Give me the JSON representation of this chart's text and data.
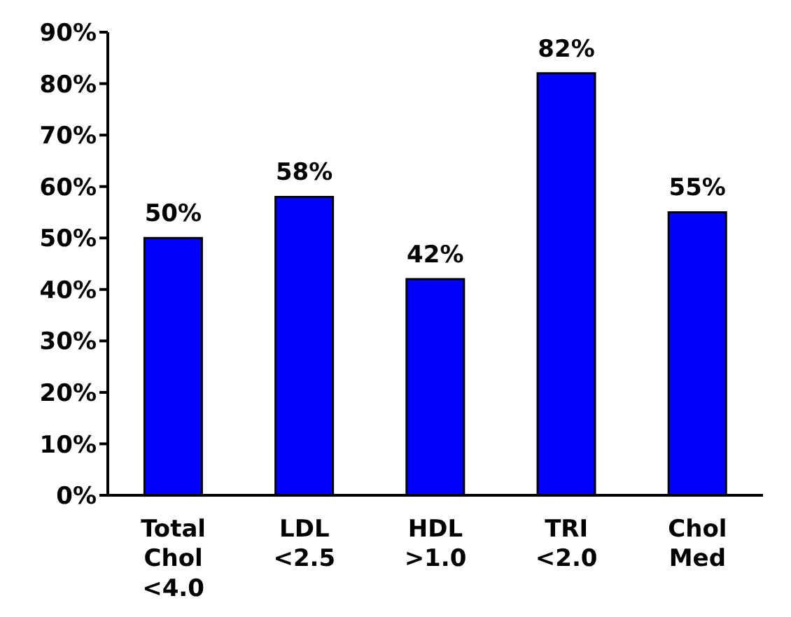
{
  "chart_data": {
    "type": "bar",
    "categories": [
      "Total Chol <4.0",
      "LDL <2.5",
      "HDL >1.0",
      "TRI <2.0",
      "Chol Med"
    ],
    "values": [
      50,
      58,
      42,
      82,
      55
    ],
    "value_labels": [
      "50%",
      "58%",
      "42%",
      "82%",
      "55%"
    ],
    "color": "#0000ff",
    "ylim": [
      0,
      90
    ],
    "yticks": [
      {
        "value": 0,
        "label": "0%"
      },
      {
        "value": 10,
        "label": "10%"
      },
      {
        "value": 20,
        "label": "20%"
      },
      {
        "value": 30,
        "label": "30%"
      },
      {
        "value": 40,
        "label": "40%"
      },
      {
        "value": 50,
        "label": "50%"
      },
      {
        "value": 60,
        "label": "60%"
      },
      {
        "value": 70,
        "label": "70%"
      },
      {
        "value": 80,
        "label": "80%"
      },
      {
        "value": 90,
        "label": "90%"
      }
    ],
    "grid": false
  }
}
